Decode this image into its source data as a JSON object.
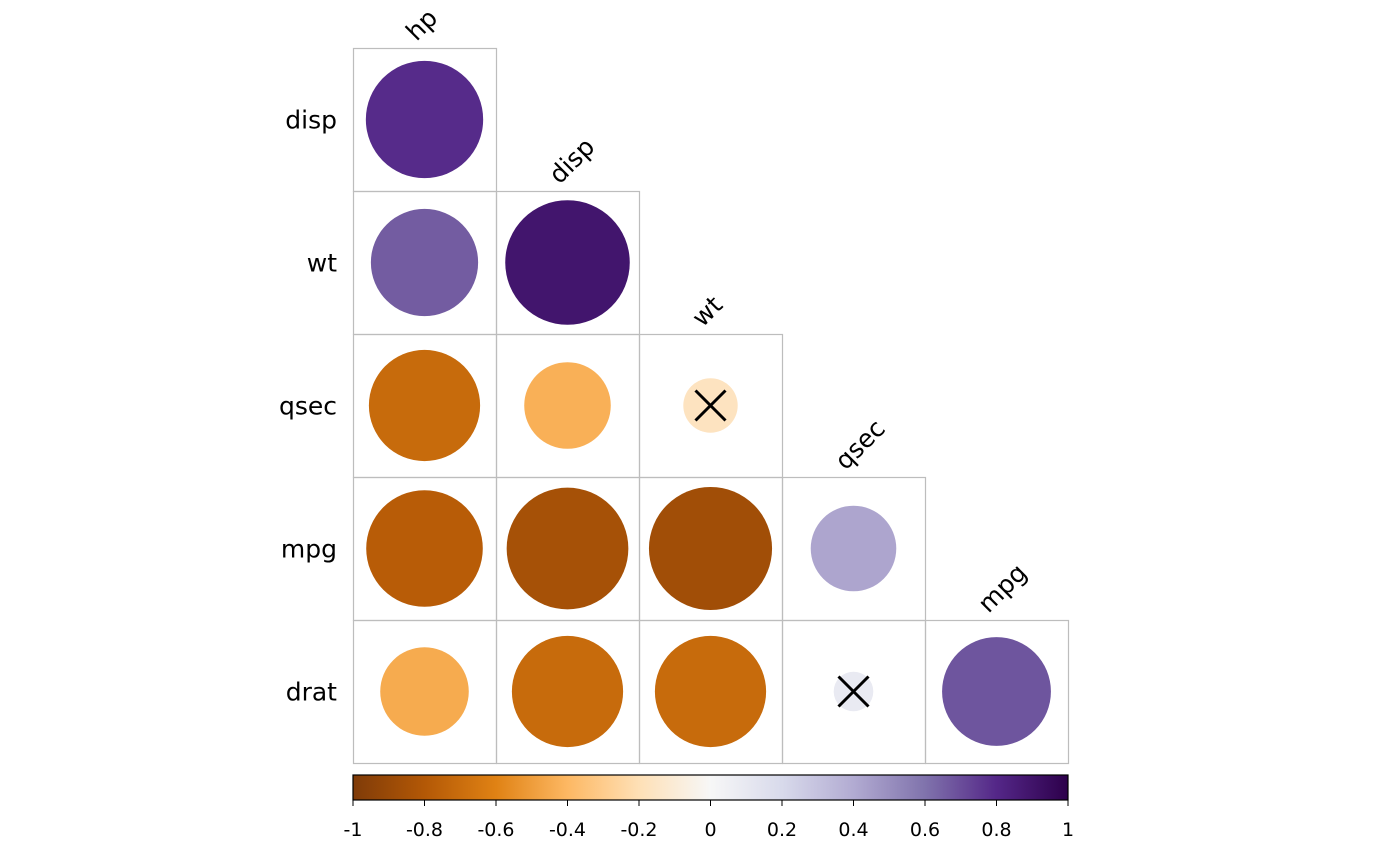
{
  "chart_data": {
    "type": "heatmap",
    "style": "corrplot-circle-lower",
    "row_labels": [
      "disp",
      "wt",
      "qsec",
      "mpg",
      "drat"
    ],
    "col_labels": [
      "hp",
      "disp",
      "wt",
      "qsec",
      "mpg"
    ],
    "values": [
      [
        0.79,
        null,
        null,
        null,
        null
      ],
      [
        0.66,
        0.89,
        null,
        null,
        null
      ],
      [
        -0.71,
        -0.43,
        -0.17,
        null,
        null
      ],
      [
        -0.78,
        -0.85,
        -0.87,
        0.42,
        null
      ],
      [
        -0.45,
        -0.71,
        -0.71,
        0.09,
        0.68
      ]
    ],
    "insignificant": [
      [
        2,
        2
      ],
      [
        4,
        3
      ]
    ],
    "colorbar": {
      "range": [
        -1,
        1
      ],
      "tick_labels": [
        "-1",
        "-0.8",
        "-0.6",
        "-0.4",
        "-0.2",
        "0",
        "0.2",
        "0.4",
        "0.6",
        "0.8",
        "1"
      ],
      "palette": [
        "#7F3B08",
        "#B35806",
        "#E08214",
        "#FDB863",
        "#FEE0B6",
        "#F7F7F7",
        "#D8DAEB",
        "#B2ABD2",
        "#8073AC",
        "#542788",
        "#2D004B"
      ]
    }
  }
}
